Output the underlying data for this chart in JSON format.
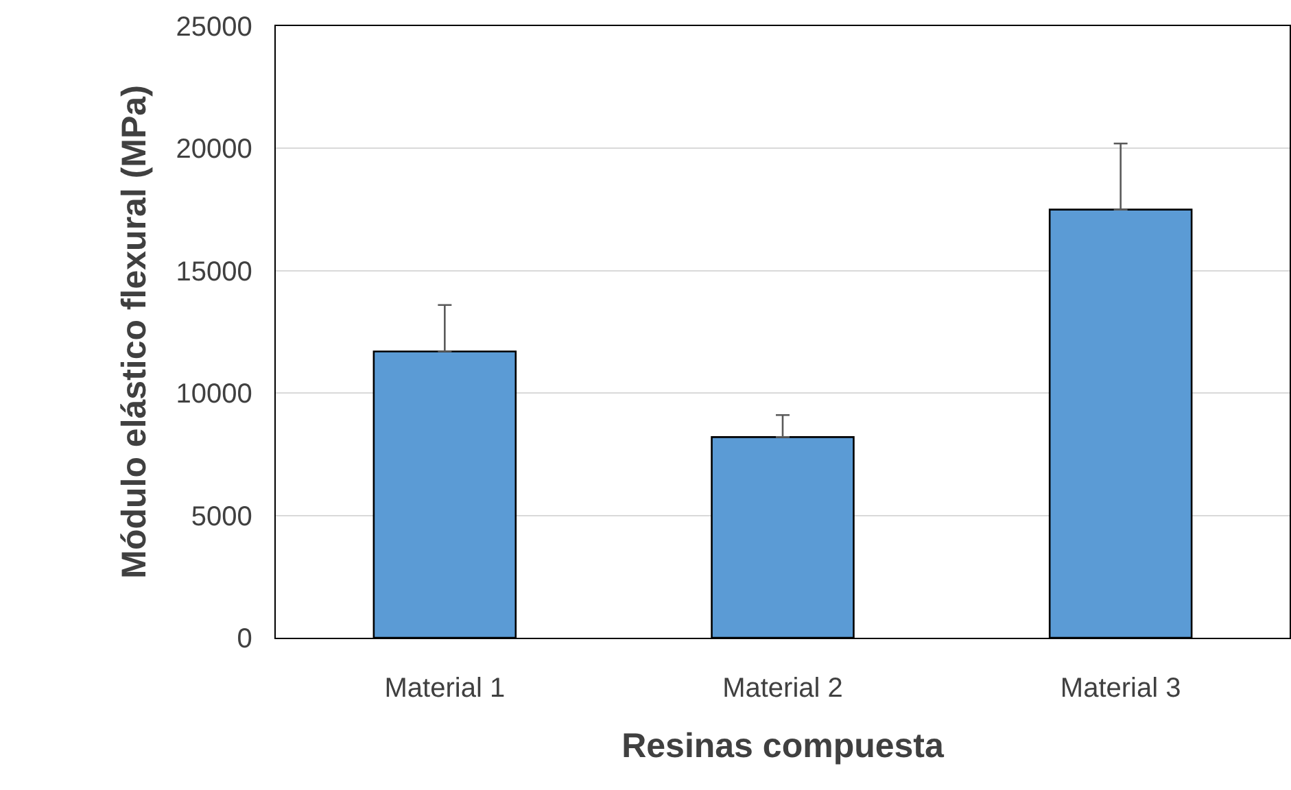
{
  "chart_data": {
    "type": "bar",
    "xlabel": "Resinas compuesta",
    "ylabel": "Módulo elástico flexural (MPa)",
    "categories": [
      "Material 1",
      "Material 2",
      "Material 3"
    ],
    "values": [
      11700,
      8200,
      17500
    ],
    "errors": [
      [
        11700,
        13600
      ],
      [
        8200,
        9100
      ],
      [
        17500,
        20200
      ]
    ],
    "color": "#5b9bd5",
    "ylim": [
      0,
      25000
    ],
    "yticks": [
      0,
      5000,
      10000,
      15000,
      20000,
      25000
    ],
    "grid": "y"
  }
}
